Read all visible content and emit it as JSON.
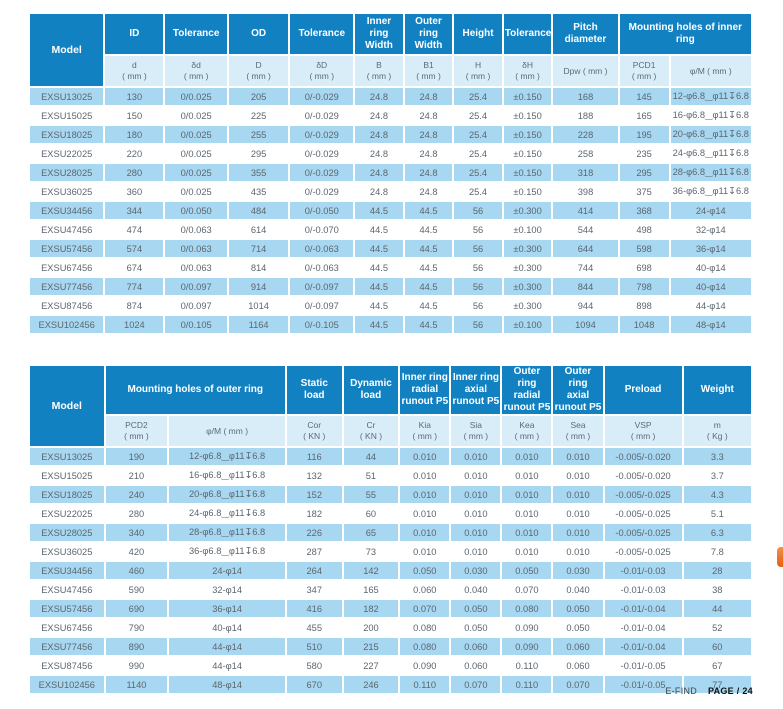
{
  "colors": {
    "header_blue": "#1181c2",
    "sub_blue": "#d9edf9",
    "row_blue": "#a7d7f1",
    "text_gray": "#5c666e"
  },
  "t1": {
    "group_headers": [
      "Model",
      "ID",
      "Tolerance",
      "OD",
      "Tolerance",
      "Inner ring\nWidth",
      "Outer ring\nWidth",
      "Height",
      "Tolerance",
      "Pitch\ndiameter",
      "Mounting holes of inner ring"
    ],
    "sub_headers": [
      "d\n( mm )",
      "δd\n( mm )",
      "D\n( mm )",
      "δD\n( mm )",
      "B\n( mm )",
      "B1\n( mm )",
      "H\n( mm )",
      "δH\n( mm )",
      "Dpw ( mm )",
      "PCD1\n( mm )",
      "φ/M ( mm )"
    ],
    "rows": [
      [
        "EXSU13025",
        "130",
        "0/0.025",
        "205",
        "0/-0.029",
        "24.8",
        "24.8",
        "25.4",
        "±0.150",
        "168",
        "145",
        "12-φ6.8‿φ11↧6.8"
      ],
      [
        "EXSU15025",
        "150",
        "0/0.025",
        "225",
        "0/-0.029",
        "24.8",
        "24.8",
        "25.4",
        "±0.150",
        "188",
        "165",
        "16-φ6.8‿φ11↧6.8"
      ],
      [
        "EXSU18025",
        "180",
        "0/0.025",
        "255",
        "0/-0.029",
        "24.8",
        "24.8",
        "25.4",
        "±0.150",
        "228",
        "195",
        "20-φ6.8‿φ11↧6.8"
      ],
      [
        "EXSU22025",
        "220",
        "0/0.025",
        "295",
        "0/-0.029",
        "24.8",
        "24.8",
        "25.4",
        "±0.150",
        "258",
        "235",
        "24-φ6.8‿φ11↧6.8"
      ],
      [
        "EXSU28025",
        "280",
        "0/0.025",
        "355",
        "0/-0.029",
        "24.8",
        "24.8",
        "25.4",
        "±0.150",
        "318",
        "295",
        "28-φ6.8‿φ11↧6.8"
      ],
      [
        "EXSU36025",
        "360",
        "0/0.025",
        "435",
        "0/-0.029",
        "24.8",
        "24.8",
        "25.4",
        "±0.150",
        "398",
        "375",
        "36-φ6.8‿φ11↧6.8"
      ],
      [
        "EXSU34456",
        "344",
        "0/0.050",
        "484",
        "0/-0.050",
        "44.5",
        "44.5",
        "56",
        "±0.300",
        "414",
        "368",
        "24-φ14"
      ],
      [
        "EXSU47456",
        "474",
        "0/0.063",
        "614",
        "0/-0.070",
        "44.5",
        "44.5",
        "56",
        "±0.100",
        "544",
        "498",
        "32-φ14"
      ],
      [
        "EXSU57456",
        "574",
        "0/0.063",
        "714",
        "0/-0.063",
        "44.5",
        "44.5",
        "56",
        "±0.300",
        "644",
        "598",
        "36-φ14"
      ],
      [
        "EXSU67456",
        "674",
        "0/0.063",
        "814",
        "0/-0.063",
        "44.5",
        "44.5",
        "56",
        "±0.300",
        "744",
        "698",
        "40-φ14"
      ],
      [
        "EXSU77456",
        "774",
        "0/0.097",
        "914",
        "0/-0.097",
        "44.5",
        "44.5",
        "56",
        "±0.300",
        "844",
        "798",
        "40-φ14"
      ],
      [
        "EXSU87456",
        "874",
        "0/0.097",
        "1014",
        "0/-0.097",
        "44.5",
        "44.5",
        "56",
        "±0.300",
        "944",
        "898",
        "44-φ14"
      ],
      [
        "EXSU102456",
        "1024",
        "0/0.105",
        "1164",
        "0/-0.105",
        "44.5",
        "44.5",
        "56",
        "±0.100",
        "1094",
        "1048",
        "48-φ14"
      ]
    ]
  },
  "t2": {
    "group_headers": [
      "Model",
      "Mounting holes of outer ring",
      "Static\nload",
      "Dynamic\nload",
      "Inner ring\nradial\nrunout P5",
      "Inner ring\naxial\nrunout P5",
      "Outer ring\nradial\nrunout P5",
      "Outer ring\naxial\nrunout P5",
      "Preload",
      "Weight"
    ],
    "sub_headers": [
      "PCD2\n( mm )",
      "φ/M ( mm )",
      "Cor\n( KN )",
      "Cr\n( KN )",
      "Kia\n( mm )",
      "Sia\n( mm )",
      "Kea\n( mm )",
      "Sea\n( mm )",
      "VSP\n( mm )",
      "m\n( Kg )"
    ],
    "rows": [
      [
        "EXSU13025",
        "190",
        "12-φ6.8‿φ11↧6.8",
        "116",
        "44",
        "0.010",
        "0.010",
        "0.010",
        "0.010",
        "-0.005/-0.020",
        "3.3"
      ],
      [
        "EXSU15025",
        "210",
        "16-φ6.8‿φ11↧6.8",
        "132",
        "51",
        "0.010",
        "0.010",
        "0.010",
        "0.010",
        "-0.005/-0.020",
        "3.7"
      ],
      [
        "EXSU18025",
        "240",
        "20-φ6.8‿φ11↧6.8",
        "152",
        "55",
        "0.010",
        "0.010",
        "0.010",
        "0.010",
        "-0.005/-0.025",
        "4.3"
      ],
      [
        "EXSU22025",
        "280",
        "24-φ6.8‿φ11↧6.8",
        "182",
        "60",
        "0.010",
        "0.010",
        "0.010",
        "0.010",
        "-0.005/-0.025",
        "5.1"
      ],
      [
        "EXSU28025",
        "340",
        "28-φ6.8‿φ11↧6.8",
        "226",
        "65",
        "0.010",
        "0.010",
        "0.010",
        "0.010",
        "-0.005/-0.025",
        "6.3"
      ],
      [
        "EXSU36025",
        "420",
        "36-φ6.8‿φ11↧6.8",
        "287",
        "73",
        "0.010",
        "0.010",
        "0.010",
        "0.010",
        "-0.005/-0.025",
        "7.8"
      ],
      [
        "EXSU34456",
        "460",
        "24-φ14",
        "264",
        "142",
        "0.050",
        "0.030",
        "0.050",
        "0.030",
        "-0.01/-0.03",
        "28"
      ],
      [
        "EXSU47456",
        "590",
        "32-φ14",
        "347",
        "165",
        "0.060",
        "0.040",
        "0.070",
        "0.040",
        "-0.01/-0.03",
        "38"
      ],
      [
        "EXSU57456",
        "690",
        "36-φ14",
        "416",
        "182",
        "0.070",
        "0.050",
        "0.080",
        "0.050",
        "-0.01/-0.04",
        "44"
      ],
      [
        "EXSU67456",
        "790",
        "40-φ14",
        "455",
        "200",
        "0.080",
        "0.050",
        "0.090",
        "0.050",
        "-0.01/-0.04",
        "52"
      ],
      [
        "EXSU77456",
        "890",
        "44-φ14",
        "510",
        "215",
        "0.080",
        "0.060",
        "0.090",
        "0.060",
        "-0.01/-0.04",
        "60"
      ],
      [
        "EXSU87456",
        "990",
        "44-φ14",
        "580",
        "227",
        "0.090",
        "0.060",
        "0.110",
        "0.060",
        "-0.01/-0.05",
        "67"
      ],
      [
        "EXSU102456",
        "1140",
        "48-φ14",
        "670",
        "246",
        "0.110",
        "0.070",
        "0.110",
        "0.070",
        "-0.01/-0.05",
        "77"
      ]
    ]
  },
  "footer": {
    "brand": "E-FIND",
    "page_label": "PAGE / 24"
  }
}
